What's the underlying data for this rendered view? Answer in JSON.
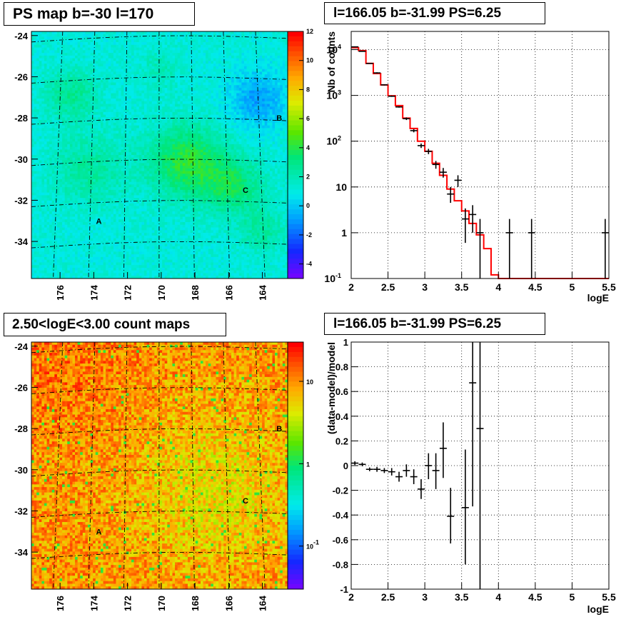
{
  "panels": {
    "ps_map": {
      "title": "PS map b=-30 l=170",
      "y_ticks": [
        "-24",
        "-26",
        "-28",
        "-30",
        "-32",
        "-34"
      ],
      "x_ticks": [
        "176",
        "174",
        "172",
        "170",
        "168",
        "166",
        "164"
      ],
      "colorbar_ticks": [
        "12",
        "10",
        "8",
        "6",
        "4",
        "2",
        "0",
        "-2",
        "-4"
      ],
      "markers": [
        "A",
        "B",
        "C"
      ]
    },
    "spectrum": {
      "title": "l=166.05 b=-31.99 PS=6.25"
    },
    "count_map": {
      "title": "2.50<logE<3.00 count maps",
      "y_ticks": [
        "-24",
        "-26",
        "-28",
        "-30",
        "-32",
        "-34"
      ],
      "x_ticks": [
        "176",
        "174",
        "172",
        "170",
        "168",
        "166",
        "164"
      ],
      "colorbar_ticks": [
        "10",
        "1",
        "10"
      ],
      "colorbar_exponent": "-1",
      "markers": [
        "A",
        "B",
        "C"
      ]
    },
    "residual": {
      "title": "l=166.05 b=-31.99 PS=6.25"
    }
  },
  "chart_data": [
    {
      "type": "heatmap",
      "title": "PS map b=-30 l=170",
      "xlabel": "",
      "ylabel": "",
      "xlim": [
        177.7,
        162.5
      ],
      "ylim": [
        -35.8,
        -23.8
      ],
      "x_ticks": [
        176,
        174,
        172,
        170,
        168,
        166,
        164
      ],
      "y_ticks": [
        -24,
        -26,
        -28,
        -30,
        -32,
        -34
      ],
      "colorbar_range": [
        -5,
        12
      ],
      "colorbar_ticks": [
        12,
        10,
        8,
        6,
        4,
        2,
        0,
        -2,
        -4
      ],
      "markers": [
        {
          "label": "A",
          "l": 173.7,
          "b": -33.0
        },
        {
          "label": "B",
          "l": 163.0,
          "b": -28.0
        },
        {
          "label": "C",
          "l": 165.0,
          "b": -31.5
        }
      ]
    },
    {
      "type": "line",
      "title": "l=166.05 b=-31.99 PS=6.25",
      "xlabel": "logE",
      "ylabel": "Nb of counts",
      "xlim": [
        2,
        5.5
      ],
      "ylim": [
        0.1,
        25000
      ],
      "yscale": "log",
      "x_ticks": [
        2,
        2.5,
        3,
        3.5,
        4,
        4.5,
        5,
        5.5
      ],
      "y_ticks": [
        {
          "v": 0.1,
          "label": "10",
          "exp": "-1"
        },
        {
          "v": 1,
          "label": "1",
          "exp": ""
        },
        {
          "v": 10,
          "label": "10",
          "exp": ""
        },
        {
          "v": 100,
          "label": "10",
          "exp": "2"
        },
        {
          "v": 1000,
          "label": "10",
          "exp": "3"
        },
        {
          "v": 10000,
          "label": "10",
          "exp": "4"
        }
      ],
      "series": [
        {
          "type": "step",
          "color": "#ff0000",
          "bin_edges": [
            2,
            2.1,
            2.2,
            2.3,
            2.4,
            2.5,
            2.6,
            2.7,
            2.8,
            2.9,
            3.0,
            3.1,
            3.2,
            3.3,
            3.4,
            3.5,
            3.6,
            3.7,
            3.8,
            3.9,
            4.0,
            4.1,
            4.2,
            4.3,
            4.4,
            4.5,
            4.6,
            4.7,
            4.8,
            4.9,
            5.0,
            5.1,
            5.2,
            5.3,
            5.4,
            5.5
          ],
          "values": [
            11000,
            9500,
            5000,
            3000,
            1700,
            980,
            600,
            320,
            190,
            100,
            60,
            33,
            18,
            9,
            5,
            3,
            1.6,
            0.9,
            0.45,
            0.12,
            0.1,
            0.1,
            0.1,
            0.1,
            0.1,
            0.1,
            0.1,
            0.1,
            0.1,
            0.1,
            0.1,
            0.1,
            0.1,
            0.1,
            0.1
          ]
        },
        {
          "type": "errorbar",
          "color": "#000000",
          "points": [
            {
              "x": 2.05,
              "y": 11500,
              "lo": 11300,
              "hi": 11700
            },
            {
              "x": 2.15,
              "y": 9200,
              "lo": 9000,
              "hi": 9400
            },
            {
              "x": 2.25,
              "y": 5000,
              "lo": 4900,
              "hi": 5100
            },
            {
              "x": 2.35,
              "y": 3100,
              "lo": 3000,
              "hi": 3200
            },
            {
              "x": 2.45,
              "y": 1700,
              "lo": 1650,
              "hi": 1750
            },
            {
              "x": 2.55,
              "y": 960,
              "lo": 930,
              "hi": 990
            },
            {
              "x": 2.65,
              "y": 560,
              "lo": 540,
              "hi": 580
            },
            {
              "x": 2.75,
              "y": 310,
              "lo": 290,
              "hi": 330
            },
            {
              "x": 2.85,
              "y": 170,
              "lo": 156,
              "hi": 184
            },
            {
              "x": 2.95,
              "y": 80,
              "lo": 71,
              "hi": 89
            },
            {
              "x": 3.05,
              "y": 60,
              "lo": 52,
              "hi": 68
            },
            {
              "x": 3.15,
              "y": 31,
              "lo": 25,
              "hi": 37
            },
            {
              "x": 3.25,
              "y": 21,
              "lo": 16,
              "hi": 26
            },
            {
              "x": 3.35,
              "y": 7,
              "lo": 4.5,
              "hi": 10
            },
            {
              "x": 3.45,
              "y": 14,
              "lo": 10,
              "hi": 18
            },
            {
              "x": 3.55,
              "y": 2,
              "lo": 0.6,
              "hi": 3.4
            },
            {
              "x": 3.65,
              "y": 2.5,
              "lo": 1,
              "hi": 4
            },
            {
              "x": 3.75,
              "y": 1,
              "lo": 0.1,
              "hi": 2
            },
            {
              "x": 4.15,
              "y": 1,
              "lo": 0.1,
              "hi": 2
            },
            {
              "x": 4.45,
              "y": 1,
              "lo": 0.1,
              "hi": 2
            },
            {
              "x": 5.45,
              "y": 1,
              "lo": 0.1,
              "hi": 2
            }
          ]
        }
      ]
    },
    {
      "type": "heatmap",
      "title": "2.50<logE<3.00 count maps",
      "xlabel": "",
      "ylabel": "",
      "xlim": [
        177.7,
        162.5
      ],
      "ylim": [
        -35.8,
        -23.8
      ],
      "x_ticks": [
        176,
        174,
        172,
        170,
        168,
        166,
        164
      ],
      "y_ticks": [
        -24,
        -26,
        -28,
        -30,
        -32,
        -34
      ],
      "colorbar_scale": "log",
      "colorbar_range": [
        0.03,
        30
      ],
      "colorbar_ticks": [
        {
          "v": 10,
          "label": "10",
          "exp": ""
        },
        {
          "v": 1,
          "label": "1",
          "exp": ""
        },
        {
          "v": 0.1,
          "label": "10",
          "exp": "-1"
        }
      ],
      "markers": [
        {
          "label": "A",
          "l": 173.7,
          "b": -33.0
        },
        {
          "label": "B",
          "l": 163.0,
          "b": -28.0
        },
        {
          "label": "C",
          "l": 165.0,
          "b": -31.5
        }
      ]
    },
    {
      "type": "scatter",
      "title": "l=166.05 b=-31.99 PS=6.25",
      "xlabel": "logE",
      "ylabel": "(data-model)/model",
      "xlim": [
        2,
        5.5
      ],
      "ylim": [
        -1,
        1
      ],
      "x_ticks": [
        2,
        2.5,
        3,
        3.5,
        4,
        4.5,
        5,
        5.5
      ],
      "y_ticks": [
        -1,
        -0.8,
        -0.6,
        -0.4,
        -0.2,
        0,
        0.2,
        0.4,
        0.6,
        0.8,
        1
      ],
      "points": [
        {
          "x": 2.05,
          "y": 0.02,
          "lo": 0.005,
          "hi": 0.035
        },
        {
          "x": 2.15,
          "y": 0.01,
          "lo": -0.005,
          "hi": 0.025
        },
        {
          "x": 2.25,
          "y": -0.03,
          "lo": -0.045,
          "hi": -0.015
        },
        {
          "x": 2.35,
          "y": -0.03,
          "lo": -0.05,
          "hi": -0.01
        },
        {
          "x": 2.45,
          "y": -0.04,
          "lo": -0.06,
          "hi": -0.02
        },
        {
          "x": 2.55,
          "y": -0.05,
          "lo": -0.08,
          "hi": -0.02
        },
        {
          "x": 2.65,
          "y": -0.09,
          "lo": -0.13,
          "hi": -0.05
        },
        {
          "x": 2.75,
          "y": -0.04,
          "lo": -0.09,
          "hi": 0.01
        },
        {
          "x": 2.85,
          "y": -0.09,
          "lo": -0.15,
          "hi": -0.03
        },
        {
          "x": 2.95,
          "y": -0.19,
          "lo": -0.27,
          "hi": -0.11
        },
        {
          "x": 3.05,
          "y": 0.0,
          "lo": -0.11,
          "hi": 0.1
        },
        {
          "x": 3.15,
          "y": -0.04,
          "lo": -0.19,
          "hi": 0.1
        },
        {
          "x": 3.25,
          "y": 0.14,
          "lo": -0.1,
          "hi": 0.35
        },
        {
          "x": 3.35,
          "y": -0.41,
          "lo": -0.63,
          "hi": -0.18
        },
        {
          "x": 3.55,
          "y": -0.34,
          "lo": -0.8,
          "hi": 0.13
        },
        {
          "x": 3.65,
          "y": 0.67,
          "lo": -0.33,
          "hi": 1.0
        },
        {
          "x": 3.75,
          "y": 0.3,
          "lo": -1.0,
          "hi": 1.0
        }
      ]
    }
  ]
}
